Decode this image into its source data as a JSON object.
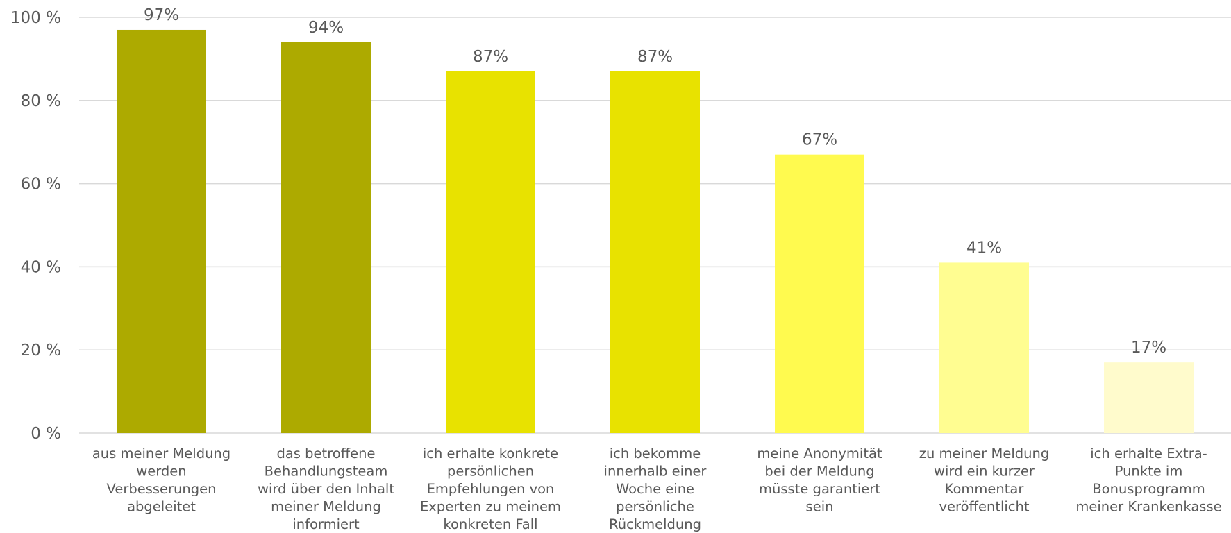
{
  "chart_data": {
    "type": "bar",
    "title": "",
    "xlabel": "",
    "ylabel": "",
    "ylim": [
      0,
      100
    ],
    "yticks": [
      0,
      20,
      40,
      60,
      80,
      100
    ],
    "ytick_labels": [
      "0 %",
      "20 %",
      "40 %",
      "60 %",
      "80 %",
      "100 %"
    ],
    "grid": true,
    "legend": "none",
    "categories": [
      [
        "aus meiner Meldung",
        "werden",
        "Verbesserungen",
        "abgeleitet"
      ],
      [
        "das betroffene",
        "Behandlungsteam",
        "wird über den Inhalt",
        "meiner Meldung",
        "informiert"
      ],
      [
        "ich erhalte konkrete",
        "persönlichen",
        "Empfehlungen von",
        "Experten zu meinem",
        "konkreten Fall"
      ],
      [
        "ich bekomme",
        "innerhalb einer",
        "Woche eine",
        "persönliche",
        "Rückmeldung"
      ],
      [
        "meine Anonymität",
        "bei der Meldung",
        "müsste garantiert",
        "sein"
      ],
      [
        "zu meiner Meldung",
        "wird ein kurzer",
        "Kommentar",
        "veröffentlicht"
      ],
      [
        "ich erhalte Extra-",
        "Punkte im",
        "Bonusprogramm",
        "meiner Krankenkasse"
      ]
    ],
    "values": [
      97,
      94,
      87,
      87,
      67,
      41,
      17
    ],
    "data_labels": [
      "97%",
      "94%",
      "87%",
      "87%",
      "67%",
      "41%",
      "17%"
    ],
    "colors": [
      "#adaa00",
      "#adaa00",
      "#e8e200",
      "#e8e200",
      "#fffa4f",
      "#fffd91",
      "#fffbcc"
    ]
  }
}
